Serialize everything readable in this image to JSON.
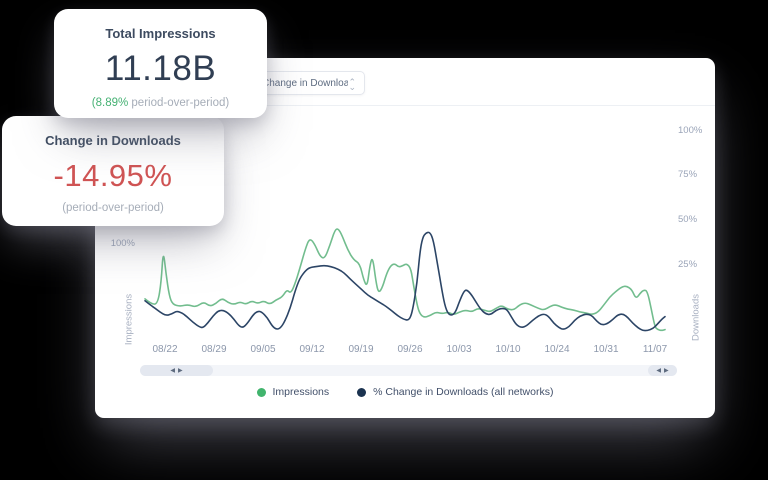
{
  "cards": {
    "impressions": {
      "title": "Total Impressions",
      "value": "11.18B",
      "delta": "(8.89%",
      "delta_rest": " period-over-period)"
    },
    "downloads": {
      "title": "Change in Downloads",
      "value": "-14.95%",
      "subtitle": "(period-over-period)"
    }
  },
  "panel": {
    "dropdown_value": "Change in Downloads",
    "dropdown_caret_up": "⌃",
    "dropdown_caret_down": "⌄"
  },
  "scrollbar": {
    "left_arrows": "◀▶",
    "right_arrows": "◀▶"
  },
  "colors": {
    "impressions_line": "#72bd8e",
    "downloads_line": "#2c4566",
    "impressions_dot": "#41b46d",
    "downloads_dot": "#1b3350",
    "positive": "#45b173",
    "negative": "#d05454"
  },
  "chart_data": {
    "type": "line",
    "x_tick_labels": [
      "08/22",
      "08/29",
      "09/05",
      "09/12",
      "09/19",
      "09/26",
      "10/03",
      "10/10",
      "10/24",
      "10/31",
      "11/07"
    ],
    "x_range_days": 77,
    "left_axis": {
      "label": "Impressions",
      "tick_labels": [
        "100%"
      ]
    },
    "right_axis": {
      "label": "Downloads",
      "tick_labels": [
        "100%",
        "75%",
        "50%",
        "25%"
      ]
    },
    "ylim": [
      0,
      125
    ],
    "grid": false,
    "legend_position": "bottom-center",
    "legend": [
      {
        "label": "Impressions",
        "color": "#41b46d"
      },
      {
        "label": "% Change in Downloads (all networks)",
        "color": "#1b3350"
      }
    ],
    "series": [
      {
        "name": "Impressions",
        "color": "#72bd8e",
        "axis": "left",
        "points": [
          [
            0,
            42
          ],
          [
            1,
            36
          ],
          [
            1.9,
            37
          ],
          [
            2.4,
            60
          ],
          [
            2.7,
            95
          ],
          [
            3.1,
            70
          ],
          [
            3.6,
            45
          ],
          [
            4.1,
            36
          ],
          [
            5.2,
            34
          ],
          [
            6.4,
            36
          ],
          [
            7.5,
            33
          ],
          [
            8.7,
            39
          ],
          [
            9.6,
            34
          ],
          [
            10.5,
            37
          ],
          [
            11.4,
            43
          ],
          [
            12.3,
            38
          ],
          [
            13.2,
            36
          ],
          [
            14.1,
            39
          ],
          [
            14.9,
            36
          ],
          [
            15.8,
            40
          ],
          [
            16.7,
            37
          ],
          [
            17.6,
            40
          ],
          [
            18.5,
            36
          ],
          [
            19.4,
            41
          ],
          [
            20.3,
            44
          ],
          [
            21,
            52
          ],
          [
            21.6,
            48
          ],
          [
            22.2,
            58
          ],
          [
            22.9,
            74
          ],
          [
            23.7,
            95
          ],
          [
            24.4,
            108
          ],
          [
            25.2,
            100
          ],
          [
            25.9,
            88
          ],
          [
            26.6,
            85
          ],
          [
            27.4,
            100
          ],
          [
            28.1,
            116
          ],
          [
            28.6,
            118
          ],
          [
            29.2,
            110
          ],
          [
            30,
            95
          ],
          [
            30.9,
            84
          ],
          [
            31.8,
            80
          ],
          [
            32.4,
            62
          ],
          [
            32.9,
            55
          ],
          [
            33.3,
            78
          ],
          [
            33.7,
            88
          ],
          [
            34.2,
            60
          ],
          [
            34.6,
            48
          ],
          [
            35.2,
            55
          ],
          [
            35.8,
            70
          ],
          [
            36.4,
            78
          ],
          [
            37,
            80
          ],
          [
            37.6,
            76
          ],
          [
            38.2,
            78
          ],
          [
            38.8,
            80
          ],
          [
            39.4,
            74
          ],
          [
            39.8,
            55
          ],
          [
            40.3,
            35
          ],
          [
            40.7,
            26
          ],
          [
            41.3,
            22
          ],
          [
            42.2,
            24
          ],
          [
            43.1,
            28
          ],
          [
            44,
            26
          ],
          [
            44.9,
            28
          ],
          [
            45.7,
            25
          ],
          [
            46.6,
            28
          ],
          [
            47.5,
            30
          ],
          [
            48.4,
            28
          ],
          [
            49.3,
            32
          ],
          [
            50.2,
            30
          ],
          [
            51.1,
            28
          ],
          [
            52,
            32
          ],
          [
            52.8,
            35
          ],
          [
            53.7,
            31
          ],
          [
            54.6,
            30
          ],
          [
            55.5,
            36
          ],
          [
            56.4,
            38
          ],
          [
            57.3,
            35
          ],
          [
            58.2,
            32
          ],
          [
            59.1,
            30
          ],
          [
            60,
            34
          ],
          [
            60.8,
            36
          ],
          [
            61.7,
            33
          ],
          [
            62.6,
            31
          ],
          [
            63.5,
            30
          ],
          [
            64.4,
            28
          ],
          [
            65.3,
            27
          ],
          [
            66.2,
            25
          ],
          [
            67.1,
            28
          ],
          [
            67.9,
            35
          ],
          [
            68.8,
            44
          ],
          [
            69.7,
            50
          ],
          [
            70.6,
            55
          ],
          [
            71.3,
            56
          ],
          [
            72.1,
            52
          ],
          [
            72.7,
            42
          ],
          [
            73.3,
            48
          ],
          [
            73.9,
            52
          ],
          [
            74.4,
            50
          ],
          [
            75,
            30
          ],
          [
            75.5,
            12
          ],
          [
            75.9,
            9
          ],
          [
            76.5,
            8
          ],
          [
            77,
            9
          ]
        ]
      },
      {
        "name": "% Change in Downloads (all networks)",
        "color": "#2c4566",
        "axis": "right",
        "points": [
          [
            0,
            40
          ],
          [
            0.7,
            36
          ],
          [
            1.5,
            32
          ],
          [
            2.2,
            28
          ],
          [
            3.1,
            24
          ],
          [
            4,
            26
          ],
          [
            4.7,
            29
          ],
          [
            5.5,
            27
          ],
          [
            6.2,
            23
          ],
          [
            7.1,
            17
          ],
          [
            8,
            12
          ],
          [
            8.6,
            11
          ],
          [
            9.3,
            16
          ],
          [
            10.1,
            24
          ],
          [
            10.8,
            29
          ],
          [
            11.5,
            30
          ],
          [
            12.3,
            27
          ],
          [
            13.2,
            20
          ],
          [
            13.9,
            13
          ],
          [
            14.5,
            11
          ],
          [
            15.2,
            16
          ],
          [
            16,
            25
          ],
          [
            16.7,
            29
          ],
          [
            17.3,
            28
          ],
          [
            18.1,
            22
          ],
          [
            18.8,
            13
          ],
          [
            19.5,
            9
          ],
          [
            20.1,
            11
          ],
          [
            20.7,
            18
          ],
          [
            21.5,
            32
          ],
          [
            22.2,
            50
          ],
          [
            22.9,
            64
          ],
          [
            23.7,
            72
          ],
          [
            24.4,
            76
          ],
          [
            25.5,
            77
          ],
          [
            26.5,
            78
          ],
          [
            27.5,
            77
          ],
          [
            28.6,
            74
          ],
          [
            29.5,
            70
          ],
          [
            30.3,
            64
          ],
          [
            31.2,
            58
          ],
          [
            32.1,
            52
          ],
          [
            33,
            46
          ],
          [
            33.9,
            42
          ],
          [
            34.8,
            38
          ],
          [
            35.7,
            34
          ],
          [
            36.6,
            29
          ],
          [
            37.4,
            24
          ],
          [
            38.3,
            20
          ],
          [
            39.1,
            19
          ],
          [
            39.6,
            28
          ],
          [
            40.3,
            60
          ],
          [
            40.7,
            92
          ],
          [
            41.1,
            108
          ],
          [
            41.6,
            113
          ],
          [
            42.2,
            114
          ],
          [
            42.7,
            105
          ],
          [
            43.3,
            80
          ],
          [
            44,
            50
          ],
          [
            44.5,
            32
          ],
          [
            45.1,
            24
          ],
          [
            45.9,
            26
          ],
          [
            46.6,
            40
          ],
          [
            47.2,
            50
          ],
          [
            47.6,
            52
          ],
          [
            48.2,
            48
          ],
          [
            48.9,
            40
          ],
          [
            49.7,
            31
          ],
          [
            50.4,
            26
          ],
          [
            51.2,
            25
          ],
          [
            52,
            30
          ],
          [
            52.8,
            32
          ],
          [
            53.6,
            31
          ],
          [
            54.3,
            22
          ],
          [
            55,
            14
          ],
          [
            55.8,
            11
          ],
          [
            56.5,
            13
          ],
          [
            57.4,
            19
          ],
          [
            58.3,
            24
          ],
          [
            59.1,
            26
          ],
          [
            59.8,
            23
          ],
          [
            60.5,
            16
          ],
          [
            61.3,
            11
          ],
          [
            62,
            9
          ],
          [
            62.8,
            12
          ],
          [
            63.6,
            19
          ],
          [
            64.5,
            24
          ],
          [
            65.4,
            26
          ],
          [
            66.2,
            24
          ],
          [
            66.9,
            18
          ],
          [
            67.6,
            14
          ],
          [
            68.4,
            15
          ],
          [
            69.3,
            20
          ],
          [
            70,
            25
          ],
          [
            70.8,
            26
          ],
          [
            71.5,
            22
          ],
          [
            72.2,
            16
          ],
          [
            73,
            11
          ],
          [
            73.7,
            8
          ],
          [
            74.4,
            8
          ],
          [
            75.2,
            10
          ],
          [
            75.9,
            15
          ],
          [
            76.5,
            20
          ],
          [
            77,
            23
          ]
        ]
      }
    ]
  }
}
